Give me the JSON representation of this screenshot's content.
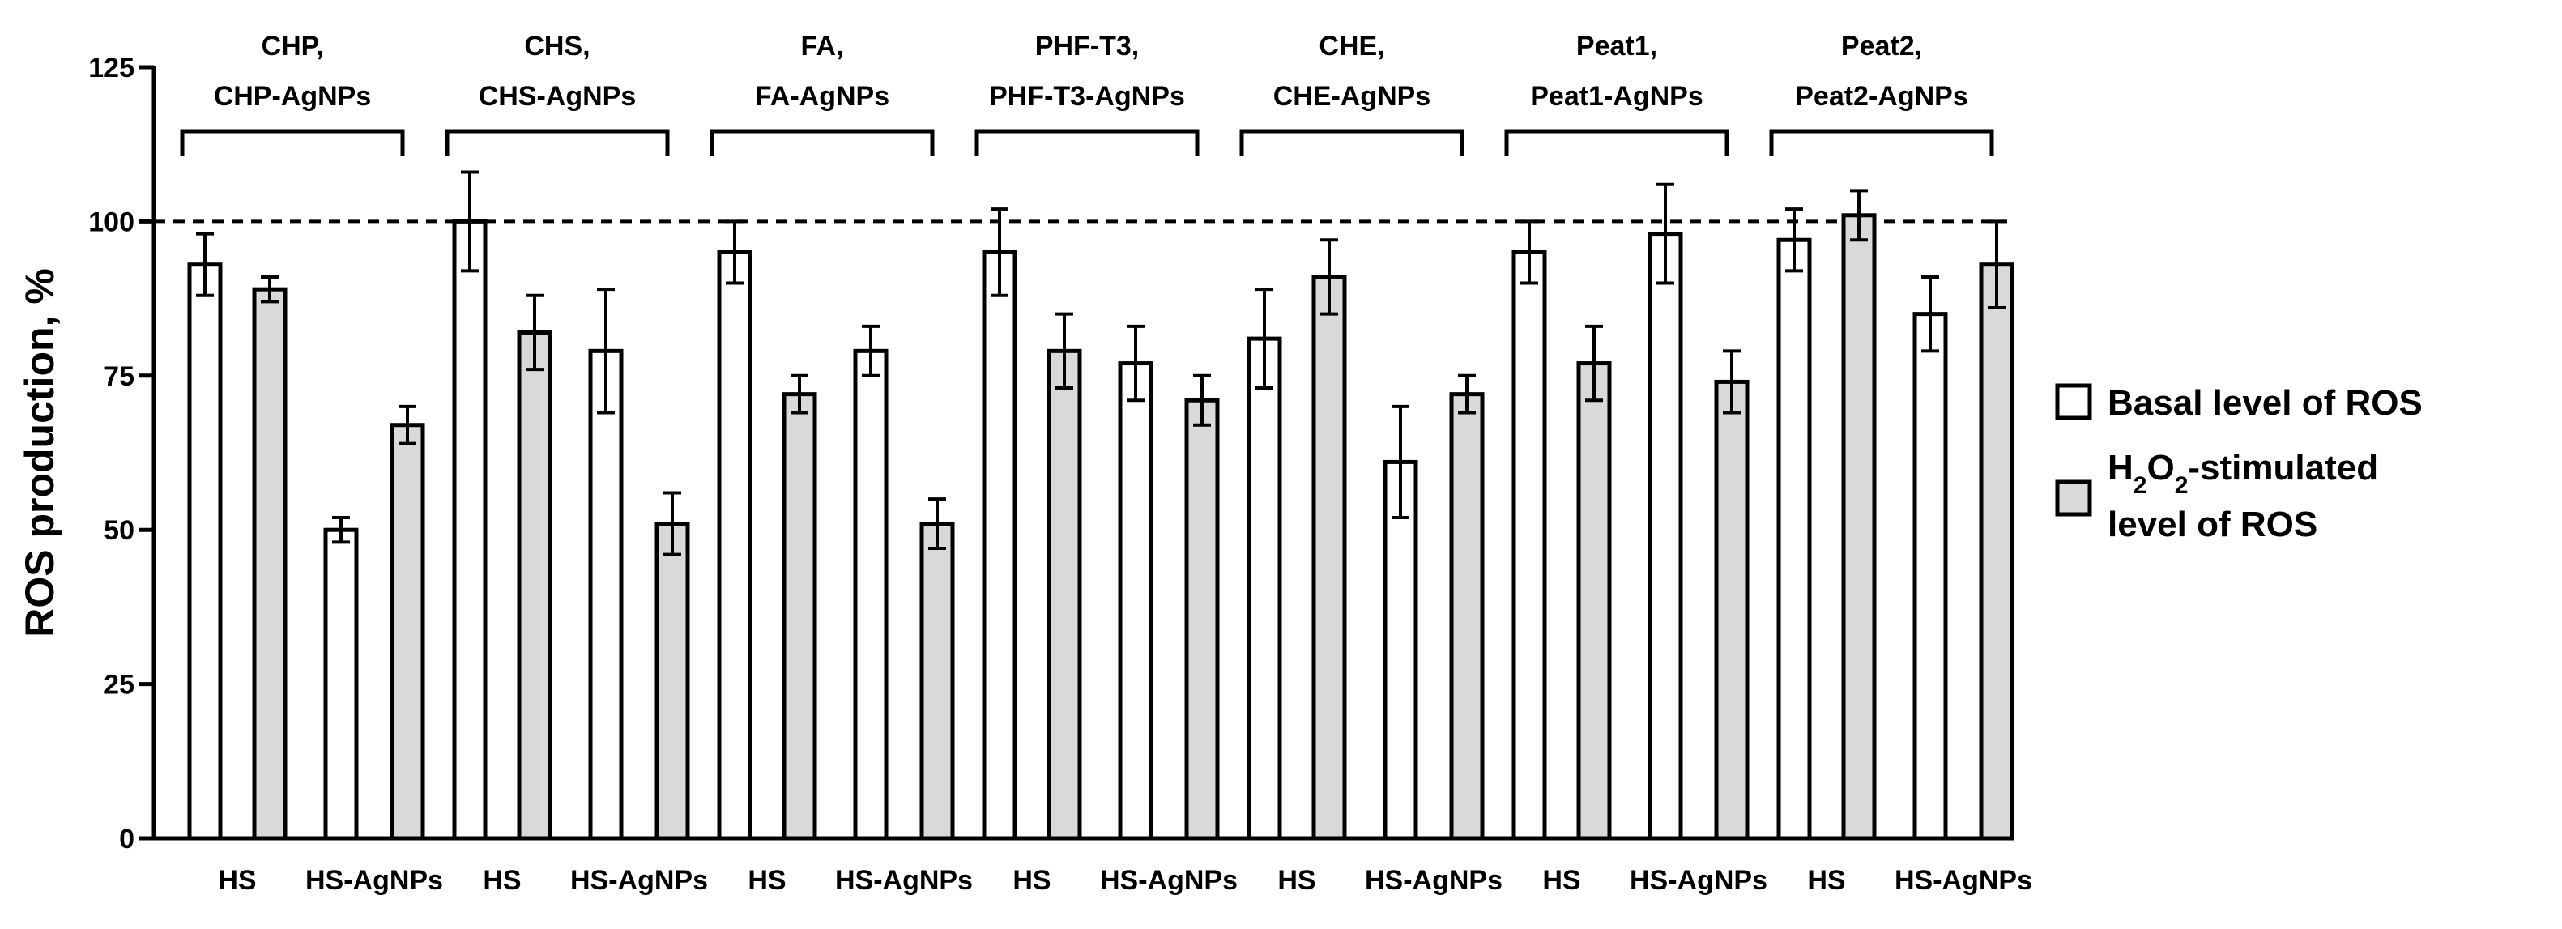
{
  "chart_data": {
    "type": "bar",
    "ylabel": "ROS production, %",
    "xlabel": "",
    "ylim": [
      0,
      125
    ],
    "yticks": [
      0,
      25,
      50,
      75,
      100,
      125
    ],
    "reference_line": 100,
    "reference_line_style": "dashed",
    "grid": false,
    "legend_position": "right",
    "groups": [
      {
        "label_line1": "CHP,",
        "label_line2": "CHP-AgNPs"
      },
      {
        "label_line1": "CHS,",
        "label_line2": "CHS-AgNPs"
      },
      {
        "label_line1": "FA,",
        "label_line2": "FA-AgNPs"
      },
      {
        "label_line1": "PHF-T3,",
        "label_line2": "PHF-T3-AgNPs"
      },
      {
        "label_line1": "CHE,",
        "label_line2": "CHE-AgNPs"
      },
      {
        "label_line1": "Peat1,",
        "label_line2": "Peat1-AgNPs"
      },
      {
        "label_line1": "Peat2,",
        "label_line2": "Peat2-AgNPs"
      }
    ],
    "subcategories": [
      "HS",
      "HS-AgNPs"
    ],
    "series": [
      {
        "name": "Basal level of ROS",
        "color": "#ffffff",
        "values": [
          93,
          50,
          100,
          79,
          95,
          79,
          95,
          77,
          81,
          61,
          95,
          98,
          97,
          85
        ],
        "errors": [
          5,
          2,
          8,
          10,
          5,
          4,
          7,
          6,
          8,
          9,
          5,
          8,
          5,
          6
        ]
      },
      {
        "name_parts": [
          {
            "text": "H",
            "sub": false
          },
          {
            "text": "2",
            "sub": true
          },
          {
            "text": "O",
            "sub": false
          },
          {
            "text": "2",
            "sub": true
          },
          {
            "text": "-stimulated",
            "sub": false
          }
        ],
        "name_line2": "level of ROS",
        "color": "#d9d9d9",
        "values": [
          89,
          67,
          82,
          51,
          72,
          51,
          79,
          71,
          91,
          72,
          77,
          74,
          101,
          93
        ],
        "errors": [
          2,
          3,
          6,
          5,
          3,
          4,
          6,
          4,
          6,
          3,
          6,
          5,
          4,
          7
        ]
      }
    ]
  }
}
